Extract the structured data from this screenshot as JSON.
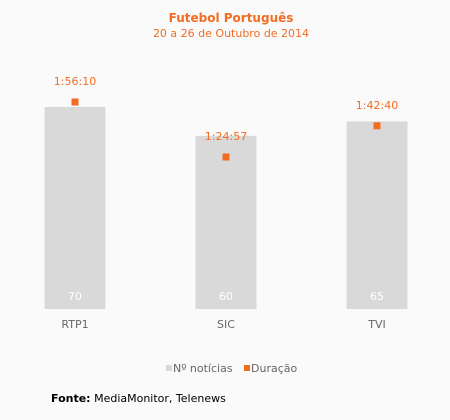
{
  "chart_data": {
    "type": "bar",
    "title": "Futebol Português",
    "subtitle": "20 a 26 de Outubro de 2014",
    "categories": [
      "RTP1",
      "SIC",
      "TVI"
    ],
    "series": [
      {
        "name": "Nº notícias",
        "type": "bar",
        "color": "#d9d9d9",
        "values": [
          70,
          60,
          65
        ]
      },
      {
        "name": "Duração",
        "type": "scatter",
        "color": "#f26d21",
        "values": [
          "1:56:10",
          "1:24:57",
          "1:42:40"
        ],
        "values_seconds": [
          6970,
          5097,
          6160
        ]
      }
    ],
    "legend": "bottom",
    "grid": false,
    "colors": {
      "bar": "#d9d9d9",
      "marker": "#f26d21",
      "title": "#f26d21",
      "bar_label": "#ffffff",
      "category_label": "#666666",
      "legend_text": "#666666"
    }
  },
  "source": {
    "label": "Fonte:",
    "text": "MediaMonitor, Telenews"
  }
}
